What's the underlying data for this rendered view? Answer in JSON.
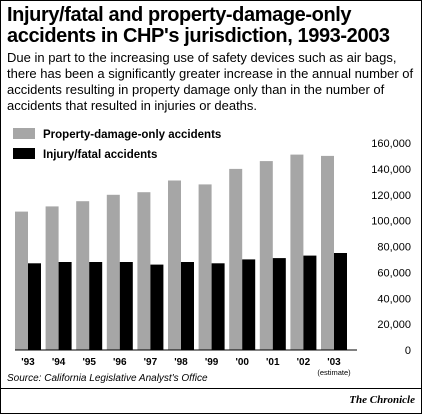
{
  "header": {
    "title": "Injury/fatal and property-damage-only accidents in CHP's jurisdiction, 1993-2003",
    "subtitle": "Due in part to the increasing use of safety devices such as air bags, there has been a significantly greater increase in the annual number of accidents resulting in property damage only than in the number of accidents that resulted in injuries or deaths."
  },
  "footer": {
    "source": "Source: California Legislative Analyst's Office",
    "credit": "The Chronicle"
  },
  "colors": {
    "property": "#a6a6a6",
    "injury": "#000000"
  },
  "chart_data": {
    "type": "bar",
    "categories": [
      "'93",
      "'94",
      "'95",
      "'96",
      "'97",
      "'98",
      "'99",
      "'00",
      "'01",
      "'02",
      "'03"
    ],
    "category_notes": [
      "",
      "",
      "",
      "",
      "",
      "",
      "",
      "",
      "",
      "",
      "(estimate)"
    ],
    "series": [
      {
        "name": "Property-damage-only accidents",
        "values": [
          107000,
          111000,
          115000,
          120000,
          122000,
          131000,
          128000,
          140000,
          146000,
          151000,
          150000
        ]
      },
      {
        "name": "Injury/fatal accidents",
        "values": [
          67000,
          68000,
          68000,
          68000,
          66000,
          68000,
          67000,
          70000,
          71000,
          73000,
          75000
        ]
      }
    ],
    "yticks": [
      "0",
      "20,000",
      "40,000",
      "60,000",
      "80,000",
      "100,000",
      "120,000",
      "140,000",
      "160,000"
    ],
    "ylim": [
      0,
      160000
    ],
    "grid": false,
    "legend": "top-left"
  }
}
